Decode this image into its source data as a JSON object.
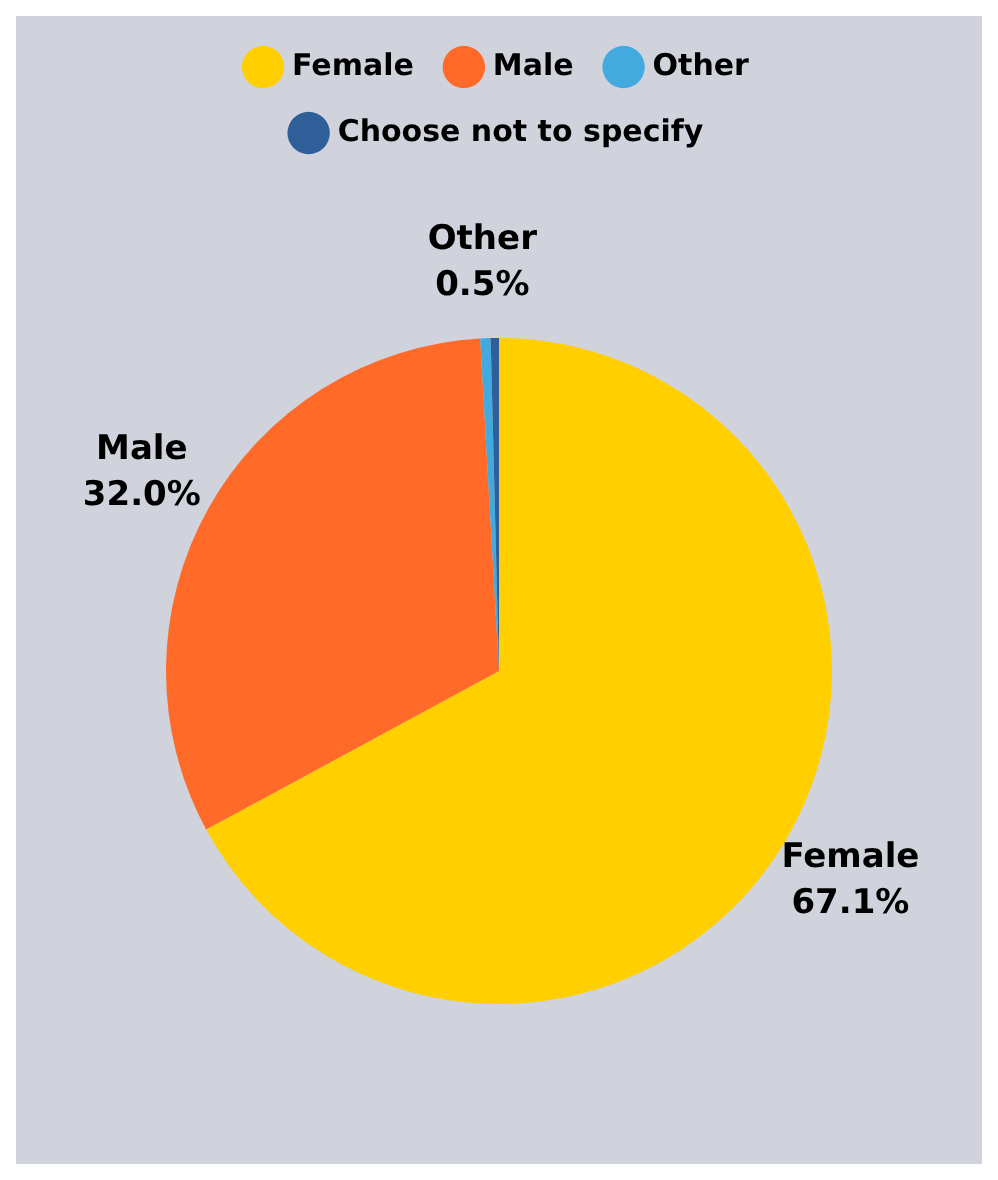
{
  "chart_data": {
    "type": "pie",
    "categories": [
      "Female",
      "Male",
      "Other",
      "Choose not to specify"
    ],
    "values": [
      67.1,
      32.0,
      0.5,
      0.4
    ],
    "colors": [
      "#ffcf00",
      "#ff6a28",
      "#42aadf",
      "#2e5f98"
    ],
    "value_labels": [
      "67.1%",
      "32.0%",
      "0.5%",
      null
    ],
    "legend": "top"
  }
}
